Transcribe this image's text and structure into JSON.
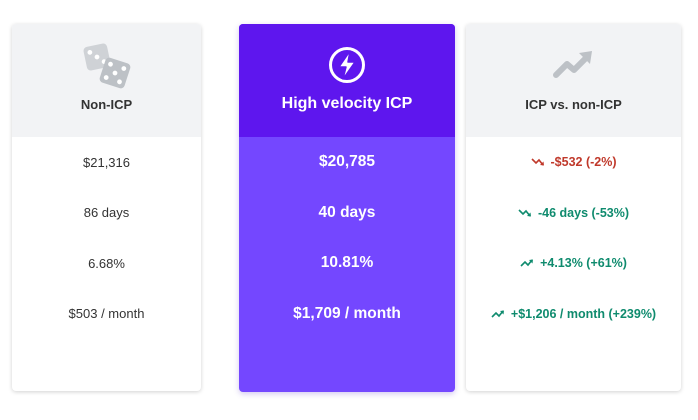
{
  "columns": [
    {
      "title": "Non-ICP",
      "icon": "dice-icon",
      "rows": [
        "$21,316",
        "86 days",
        "6.68%",
        "$503 / month"
      ]
    },
    {
      "title": "High velocity ICP",
      "icon": "lightning-bolt-icon",
      "rows": [
        "$20,785",
        "40 days",
        "10.81%",
        "$1,709 / month"
      ]
    },
    {
      "title": "ICP vs. non-ICP",
      "icon": "trend-up-icon",
      "rows": [
        {
          "text": "-$532 (-2%)",
          "trend": "down",
          "color": "#c0392b"
        },
        {
          "text": "-46 days (-53%)",
          "trend": "down",
          "color": "#0f8b6e"
        },
        {
          "text": "+4.13% (+61%)",
          "trend": "up",
          "color": "#0f8b6e"
        },
        {
          "text": "+$1,206 / month (+239%)",
          "trend": "up",
          "color": "#0f8b6e"
        }
      ]
    }
  ],
  "colors": {
    "accent_purple": "#5e16ee",
    "accent_purple_light": "#7447ff",
    "negative": "#c0392b",
    "positive": "#0f8b6e"
  }
}
